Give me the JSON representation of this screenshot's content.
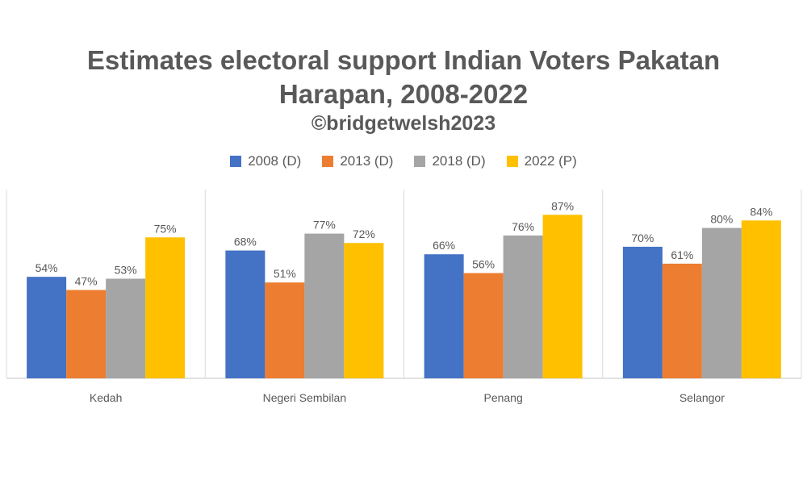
{
  "chart_data": {
    "type": "bar",
    "title_line1": "Estimates electoral support Indian Voters Pakatan",
    "title_line2": "Harapan, 2008-2022",
    "subtitle": "©bridgetwelsh2023",
    "categories": [
      "Kedah",
      "Negeri Sembilan",
      "Penang",
      "Selangor"
    ],
    "series": [
      {
        "name": "2008 (D)",
        "color": "#4472C4",
        "values": [
          54,
          68,
          66,
          70
        ],
        "labels": [
          "54%",
          "68%",
          "66%",
          "70%"
        ]
      },
      {
        "name": "2013 (D)",
        "color": "#ED7D31",
        "values": [
          47,
          51,
          56,
          61
        ],
        "labels": [
          "47%",
          "51%",
          "56%",
          "61%"
        ]
      },
      {
        "name": "2018 (D)",
        "color": "#A5A5A5",
        "values": [
          53,
          77,
          76,
          80
        ],
        "labels": [
          "53%",
          "77%",
          "76%",
          "80%"
        ]
      },
      {
        "name": "2022 (P)",
        "color": "#FFC000",
        "values": [
          75,
          72,
          87,
          84
        ],
        "labels": [
          "75%",
          "72%",
          "87%",
          "84%"
        ]
      }
    ],
    "ylim": [
      0,
      100
    ],
    "legend_position": "top",
    "grid": false
  }
}
